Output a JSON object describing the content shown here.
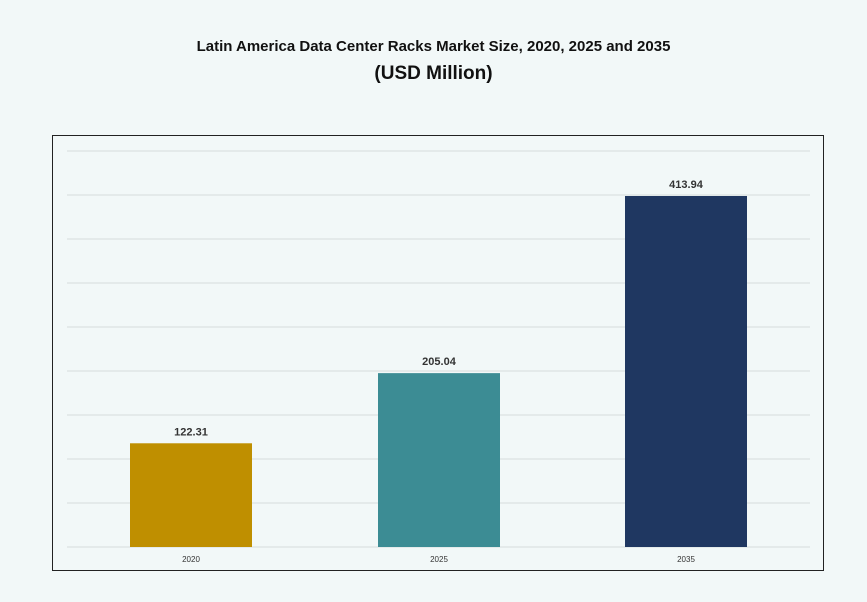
{
  "chart_data": {
    "type": "bar",
    "title": "Latin America Data Center Racks Market Size, 2020, 2025 and 2035",
    "subtitle": "(USD Million)",
    "categories": [
      "2020",
      "2025",
      "2035"
    ],
    "values": [
      122.31,
      205.04,
      413.94
    ],
    "data_labels": [
      "122.31",
      "205.04",
      "413.94"
    ],
    "colors": [
      "#bf8f00",
      "#3c8c94",
      "#1f3761"
    ],
    "xlabel": "",
    "ylabel": "",
    "ylim": [
      0,
      467
    ],
    "y_gridlines": 9,
    "grid": true,
    "y_tick_labels_shown": false,
    "legend": "none"
  }
}
